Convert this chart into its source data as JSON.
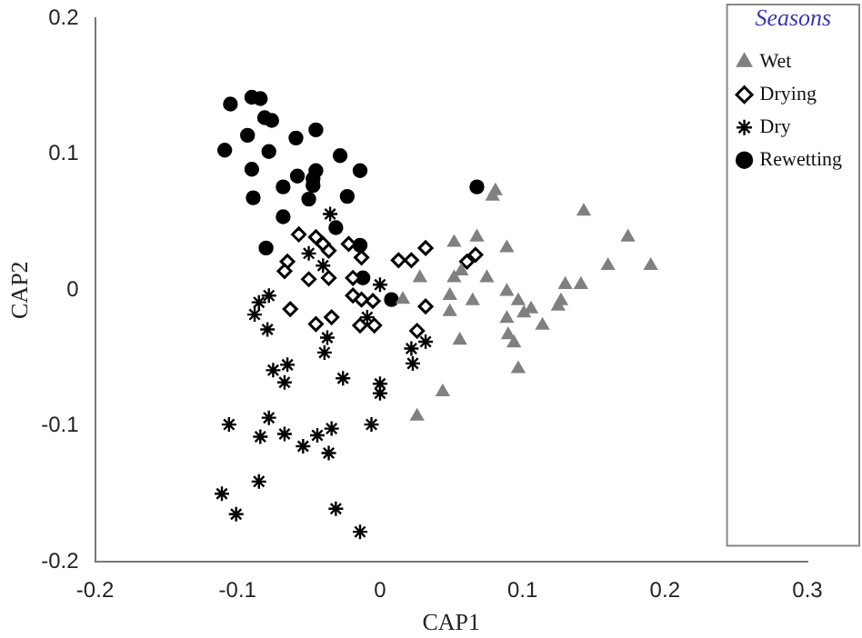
{
  "chart_data": {
    "type": "scatter",
    "xlabel": "CAP1",
    "ylabel": "CAP2",
    "legend_title": "Seasons",
    "legend": "top right",
    "grid": false,
    "xlim": [
      -0.2,
      0.3
    ],
    "xticks": [
      -0.2,
      -0.1,
      0,
      0.1,
      0.2,
      0.3
    ],
    "ylim": [
      -0.2,
      0.2
    ],
    "yticks": [
      -0.2,
      -0.1,
      0,
      0.1,
      0.2
    ],
    "series": [
      {
        "name": "Wet",
        "color": "#808080",
        "marker": "triangle",
        "x": [
          0.081,
          0.079,
          0.143,
          0.174,
          0.19,
          0.16,
          0.052,
          0.068,
          0.089,
          0.028,
          0.057,
          0.052,
          0.075,
          0.016,
          0.049,
          0.065,
          0.049,
          0.089,
          0.097,
          0.13,
          0.141,
          0.127,
          0.125,
          0.106,
          0.101,
          0.089,
          0.114,
          0.09,
          0.094,
          0.056,
          0.097,
          0.044,
          0.026
        ],
        "values": [
          0.073,
          0.069,
          0.058,
          0.039,
          0.018,
          0.018,
          0.035,
          0.039,
          0.031,
          0.009,
          0.014,
          0.009,
          0.009,
          -0.007,
          -0.004,
          -0.008,
          -0.016,
          -0.001,
          -0.008,
          0.004,
          0.004,
          -0.008,
          -0.012,
          -0.014,
          -0.017,
          -0.021,
          -0.026,
          -0.033,
          -0.039,
          -0.037,
          -0.058,
          -0.075,
          -0.093
        ]
      },
      {
        "name": "Drying",
        "color": "#000000",
        "marker": "diamond",
        "x": [
          -0.057,
          -0.045,
          -0.04,
          -0.036,
          -0.065,
          -0.067,
          -0.05,
          -0.036,
          -0.022,
          -0.019,
          -0.013,
          0.013,
          0.022,
          -0.019,
          -0.013,
          -0.005,
          -0.063,
          -0.045,
          -0.034,
          -0.014,
          -0.004,
          0.026,
          0.032,
          0.061,
          0.067,
          0.032
        ],
        "values": [
          0.041,
          0.039,
          0.034,
          0.029,
          0.021,
          0.014,
          0.008,
          0.009,
          0.034,
          0.009,
          0.024,
          0.022,
          0.022,
          -0.004,
          -0.007,
          -0.008,
          -0.014,
          -0.025,
          -0.02,
          -0.026,
          -0.026,
          -0.03,
          0.031,
          0.021,
          0.026,
          -0.012
        ]
      },
      {
        "name": "Dry",
        "color": "#000000",
        "marker": "cross",
        "x": [
          -0.035,
          -0.05,
          -0.04,
          -0.085,
          -0.078,
          -0.088,
          -0.079,
          -0.037,
          -0.039,
          -0.009,
          0,
          0.022,
          0.023,
          0.032,
          -0.065,
          -0.075,
          -0.067,
          -0.026,
          0,
          0,
          -0.078,
          -0.106,
          -0.084,
          -0.067,
          -0.054,
          -0.044,
          -0.034,
          -0.036,
          -0.006,
          -0.085,
          -0.111,
          -0.101,
          -0.031,
          -0.014
        ],
        "values": [
          0.056,
          0.027,
          0.018,
          -0.009,
          -0.004,
          -0.018,
          -0.029,
          -0.035,
          -0.046,
          -0.02,
          0.004,
          -0.043,
          -0.054,
          -0.038,
          -0.055,
          -0.059,
          -0.068,
          -0.065,
          -0.069,
          -0.076,
          -0.094,
          -0.099,
          -0.108,
          -0.106,
          -0.115,
          -0.107,
          -0.102,
          -0.12,
          -0.099,
          -0.141,
          -0.15,
          -0.165,
          -0.161,
          -0.178
        ]
      },
      {
        "name": "Rewetting",
        "color": "#000000",
        "marker": "circle",
        "x": [
          -0.105,
          -0.09,
          -0.084,
          -0.081,
          -0.076,
          -0.093,
          -0.109,
          -0.078,
          -0.059,
          -0.045,
          -0.09,
          -0.028,
          -0.014,
          -0.058,
          -0.045,
          -0.047,
          -0.047,
          -0.068,
          -0.089,
          -0.05,
          -0.023,
          -0.068,
          -0.031,
          -0.08,
          -0.014,
          -0.012,
          0.068,
          0.008
        ],
        "values": [
          0.137,
          0.142,
          0.141,
          0.127,
          0.125,
          0.114,
          0.103,
          0.102,
          0.112,
          0.118,
          0.089,
          0.099,
          0.088,
          0.084,
          0.088,
          0.082,
          0.077,
          0.076,
          0.068,
          0.067,
          0.069,
          0.054,
          0.046,
          0.031,
          0.033,
          0.009,
          0.076,
          -0.007
        ]
      }
    ]
  }
}
